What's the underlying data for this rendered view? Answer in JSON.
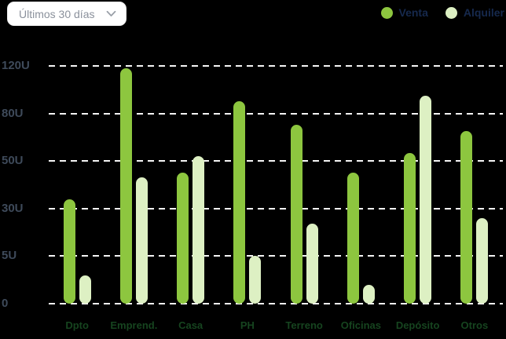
{
  "filter_dropdown": {
    "label": "Últimos 30 días"
  },
  "colors": {
    "background": "#000000",
    "venta": "#8dc63f",
    "alquiler": "#ddf0c3",
    "legend_text": "#16294d",
    "axis_label": "#3e4a5a",
    "category_label": "#16441f",
    "gridline": "#f5f5f5",
    "dropdown_text": "#8b919c"
  },
  "chart_data": {
    "type": "bar",
    "title": "",
    "xlabel": "",
    "ylabel": "",
    "unit": "U",
    "categories": [
      "Dpto",
      "Emprend.",
      "Casa",
      "PH",
      "Terreno",
      "Oficinas",
      "Depósito",
      "Otros"
    ],
    "series": [
      {
        "name": "Venta",
        "color": "#8dc63f",
        "values": [
          34,
          118,
          45,
          90,
          73,
          45,
          55,
          69
        ]
      },
      {
        "name": "Alquiler",
        "color": "#ddf0c3",
        "values": [
          3,
          43,
          53,
          5,
          22,
          2,
          95,
          25
        ]
      }
    ],
    "y_ticks": [
      {
        "value": 0,
        "label": "0"
      },
      {
        "value": 5,
        "label": "5U"
      },
      {
        "value": 30,
        "label": "30U"
      },
      {
        "value": 50,
        "label": "50U"
      },
      {
        "value": 80,
        "label": "80U"
      },
      {
        "value": 120,
        "label": "120U"
      }
    ],
    "y_scale": "ticks evenly spaced (non-linear value axis)",
    "grid": "dashed horizontal lines",
    "legend_position": "top-right"
  }
}
